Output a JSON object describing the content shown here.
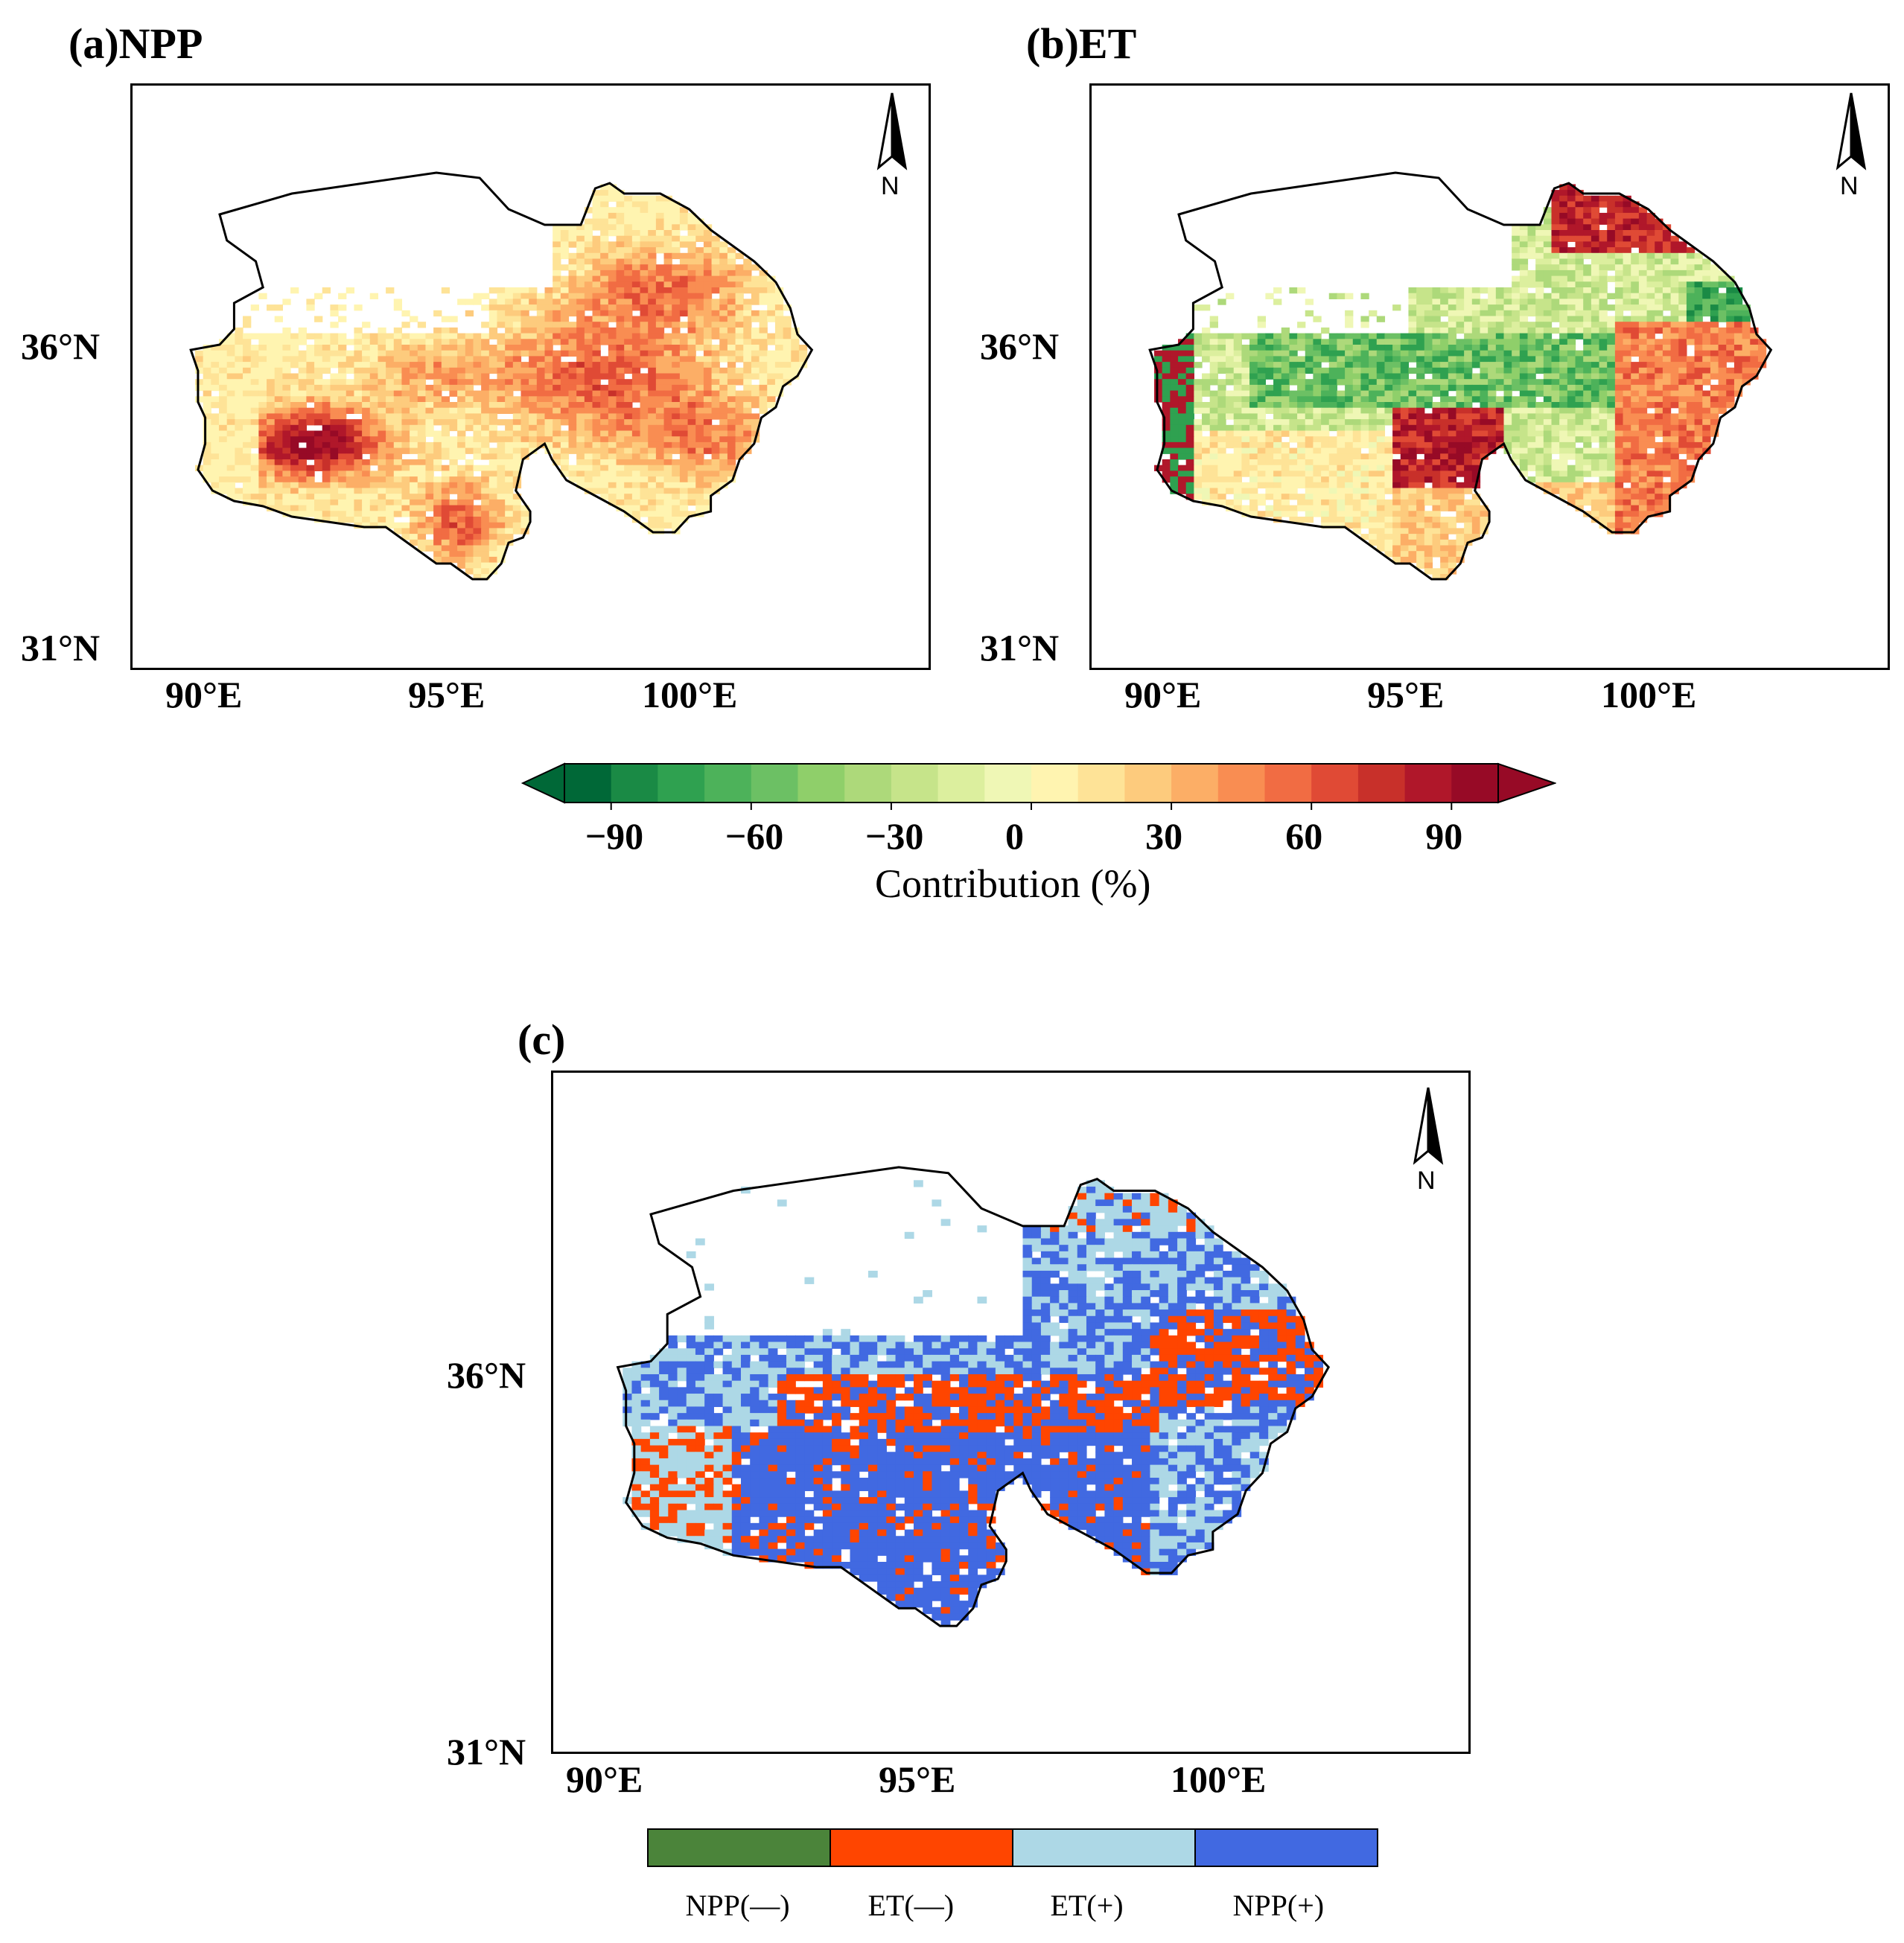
{
  "panels": {
    "a": {
      "title": "(a)NPP"
    },
    "b": {
      "title": "(b)ET"
    },
    "c": {
      "title": "(c)"
    }
  },
  "axes": {
    "lat_ticks": [
      "36°N",
      "31°N"
    ],
    "lon_ticks": [
      "90°E",
      "95°E",
      "100°E"
    ]
  },
  "north_arrow": {
    "label": "N",
    "icon": "north-arrow-icon"
  },
  "colorbar": {
    "title": "Contribution (%)",
    "tick_labels": [
      "−90",
      "−60",
      "−30",
      "0",
      "30",
      "60",
      "90"
    ],
    "colors": [
      "#006837",
      "#1a8a45",
      "#2fa150",
      "#4db25a",
      "#6cc064",
      "#8fcf6a",
      "#add97a",
      "#c6e48a",
      "#dcef9e",
      "#eff7b5",
      "#fff4b0",
      "#fee397",
      "#fdcb7d",
      "#fcae66",
      "#f98d52",
      "#f16c43",
      "#e04a35",
      "#c8302a",
      "#b0172a",
      "#970a26"
    ],
    "extend": "both"
  },
  "legend_c": {
    "items": [
      {
        "label": "NPP(—)",
        "color": "#4b843a"
      },
      {
        "label": "ET(—)",
        "color": "#ff4500"
      },
      {
        "label": "ET(+)",
        "color": "#add8e6"
      },
      {
        "label": "NPP(+)",
        "color": "#4169e1"
      }
    ]
  }
}
